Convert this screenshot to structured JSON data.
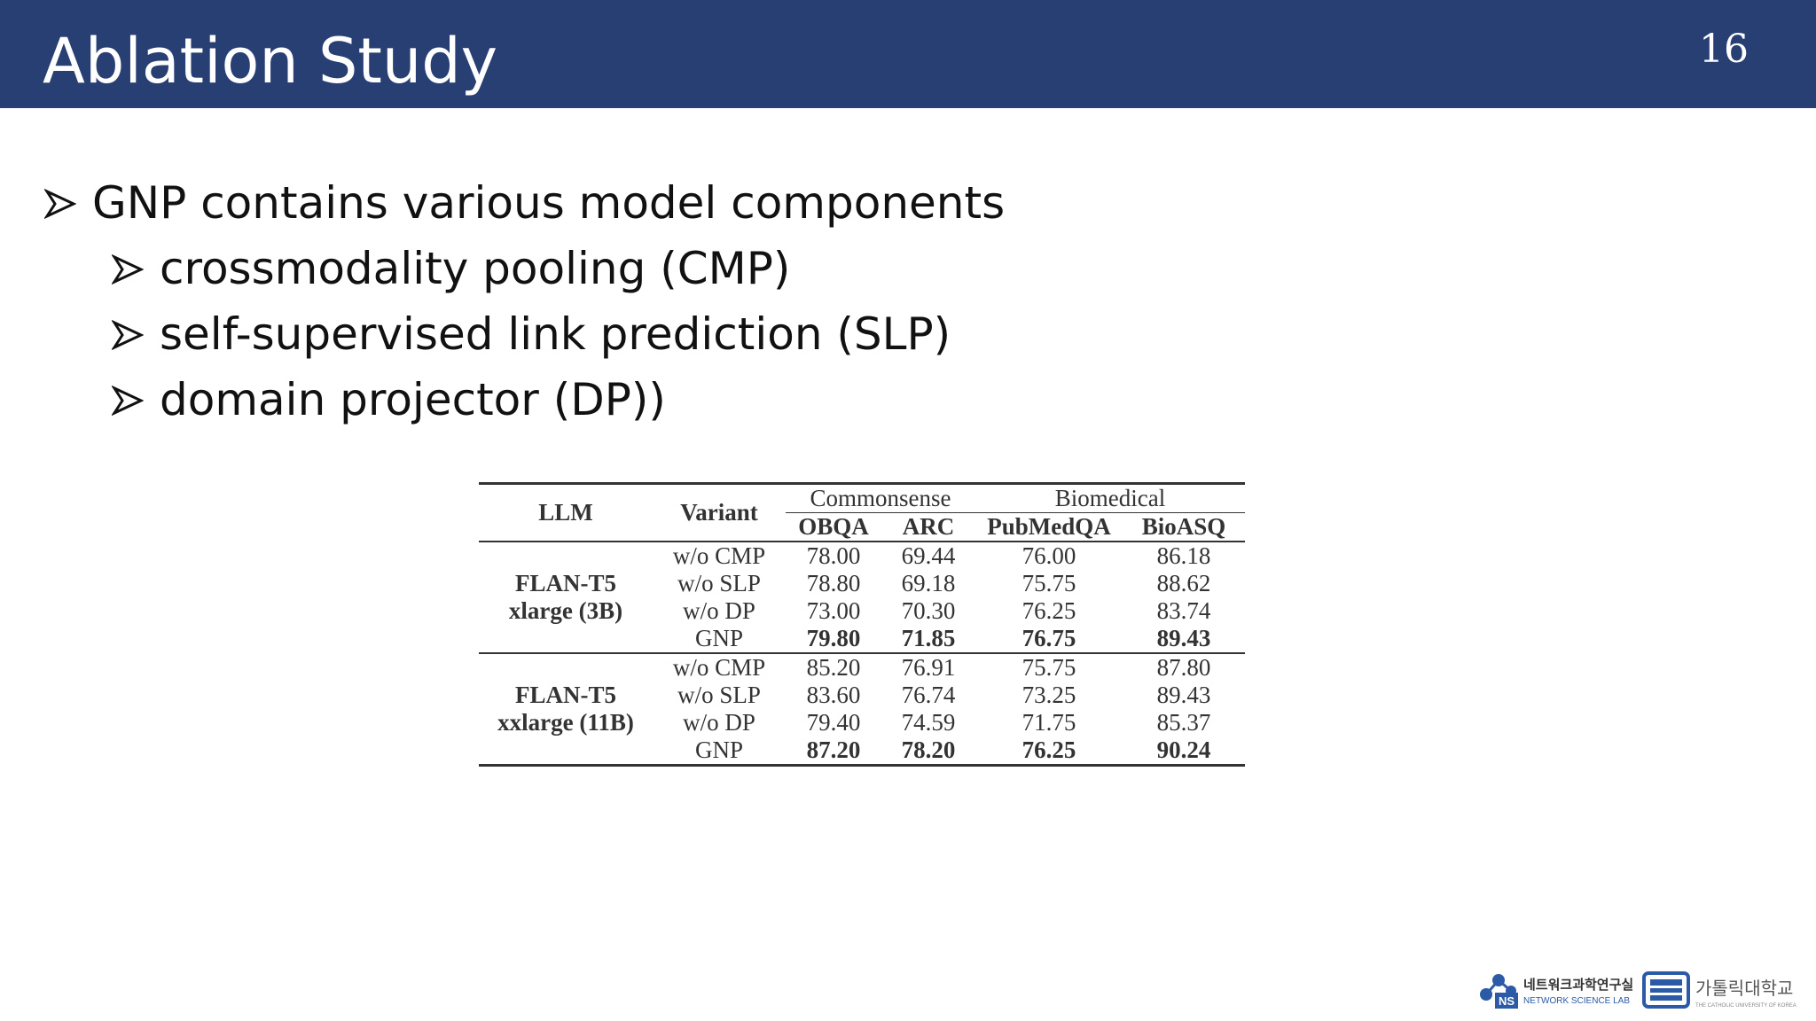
{
  "slide": {
    "title": "Ablation Study",
    "page_number": "16"
  },
  "bullets": [
    {
      "text": "GNP contains various model components",
      "level": 1
    },
    {
      "text": "crossmodality pooling (CMP)",
      "level": 2
    },
    {
      "text": "self-supervised link prediction (SLP)",
      "level": 2
    },
    {
      "text": "domain projector (DP))",
      "level": 2
    }
  ],
  "table": {
    "headers": {
      "llm": "LLM",
      "variant": "Variant",
      "group_commonsense": "Commonsense",
      "group_biomedical": "Biomedical",
      "obqa": "OBQA",
      "arc": "ARC",
      "pubmedqa": "PubMedQA",
      "bioasq": "BioASQ"
    },
    "groups": [
      {
        "llm_line1": "FLAN-T5",
        "llm_line2": "xlarge (3B)",
        "rows": [
          {
            "variant": "w/o CMP",
            "obqa": "78.00",
            "arc": "69.44",
            "pubmedqa": "76.00",
            "bioasq": "86.18"
          },
          {
            "variant": "w/o SLP",
            "obqa": "78.80",
            "arc": "69.18",
            "pubmedqa": "75.75",
            "bioasq": "88.62"
          },
          {
            "variant": "w/o DP",
            "obqa": "73.00",
            "arc": "70.30",
            "pubmedqa": "76.25",
            "bioasq": "83.74"
          },
          {
            "variant": "GNP",
            "obqa": "79.80",
            "arc": "71.85",
            "pubmedqa": "76.75",
            "bioasq": "89.43"
          }
        ]
      },
      {
        "llm_line1": "FLAN-T5",
        "llm_line2": "xxlarge (11B)",
        "rows": [
          {
            "variant": "w/o CMP",
            "obqa": "85.20",
            "arc": "76.91",
            "pubmedqa": "75.75",
            "bioasq": "87.80"
          },
          {
            "variant": "w/o SLP",
            "obqa": "83.60",
            "arc": "76.74",
            "pubmedqa": "73.25",
            "bioasq": "89.43"
          },
          {
            "variant": "w/o DP",
            "obqa": "79.40",
            "arc": "74.59",
            "pubmedqa": "71.75",
            "bioasq": "85.37"
          },
          {
            "variant": "GNP",
            "obqa": "87.20",
            "arc": "78.20",
            "pubmedqa": "76.25",
            "bioasq": "90.24"
          }
        ]
      }
    ]
  },
  "logos": {
    "ns_lab_korean": "네트워크과학연구실",
    "ns_lab_english": "NETWORK SCIENCE LAB",
    "ns_badge": "NS",
    "university_korean": "가톨릭대학교",
    "university_english": "THE CATHOLIC UNIVERSITY OF KOREA"
  },
  "colors": {
    "header_bg": "#283f74",
    "header_text": "#ffffff",
    "body_text": "#111111",
    "logo_blue": "#2b5aa6"
  }
}
